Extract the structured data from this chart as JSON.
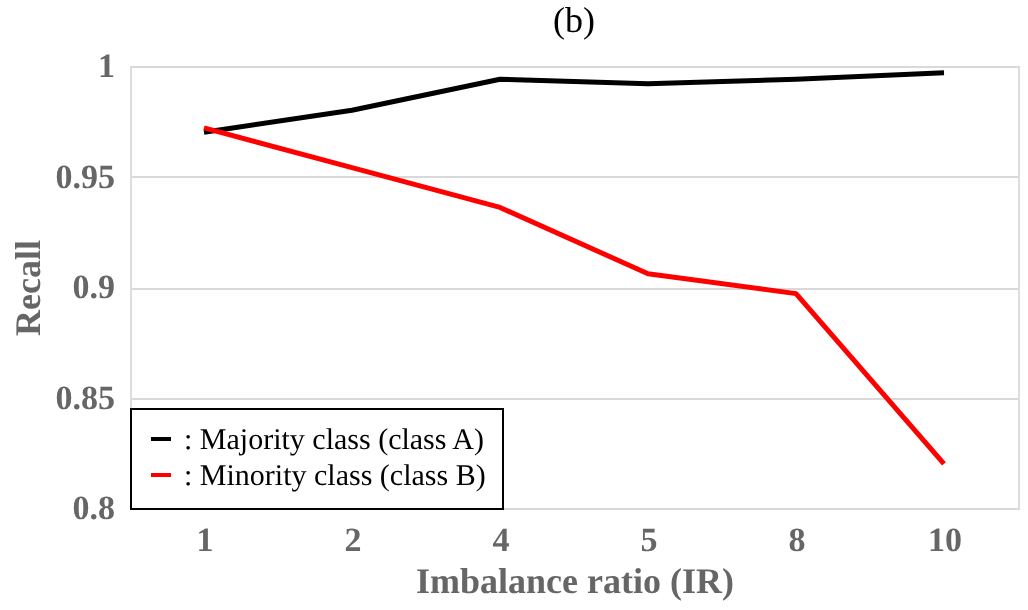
{
  "chart_data": {
    "type": "line",
    "title": "(b)",
    "xlabel": "Imbalance ratio (IR)",
    "ylabel": "Recall",
    "categories": [
      "1",
      "2",
      "4",
      "5",
      "8",
      "10"
    ],
    "series": [
      {
        "name": ": Majority class (class A)",
        "color": "#000000",
        "values": [
          0.97,
          0.98,
          0.994,
          0.992,
          0.994,
          0.997
        ]
      },
      {
        "name": ": Minority class (class B)",
        "color": "#ff0000",
        "values": [
          0.972,
          0.954,
          0.936,
          0.906,
          0.897,
          0.82
        ]
      }
    ],
    "ylim": [
      0.8,
      1
    ],
    "yticks": [
      0.8,
      0.85,
      0.9,
      0.95,
      1
    ],
    "grid": "y",
    "legend": "bottom left",
    "marker": "none",
    "line_style": "solid"
  }
}
